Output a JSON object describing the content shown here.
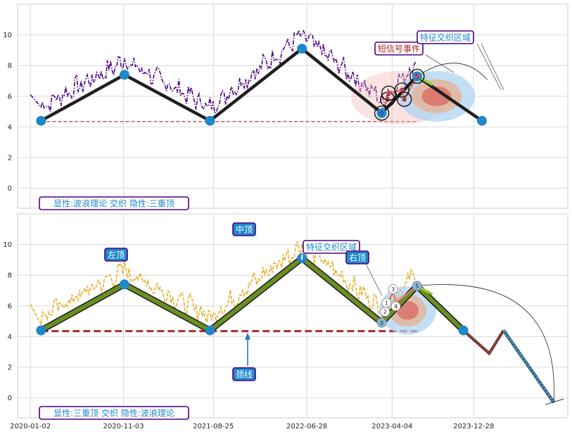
{
  "chart_data": [
    {
      "type": "line",
      "panel": "top",
      "ylim": [
        -1.3,
        12
      ],
      "yticks": [
        0,
        2,
        4,
        6,
        8,
        10
      ],
      "grid": true,
      "colors": {
        "price": "#4b0082",
        "wave": "#1f1f1f",
        "node": "#1f88c9",
        "neckline": "#b22222"
      },
      "wave_points": [
        {
          "x": "2020-02-06",
          "y": 4.4
        },
        {
          "x": "2020-11-06",
          "y": 7.4
        },
        {
          "x": "2021-08-14",
          "y": 4.4
        },
        {
          "x": "2022-06-12",
          "y": 9.1
        },
        {
          "x": "2023-03-01",
          "y": 4.9
        },
        {
          "x": "2023-06-25",
          "y": 7.3
        },
        {
          "x": "2024-01-24",
          "y": 4.4
        }
      ],
      "neckline": {
        "y": 4.35,
        "x_start": "2020-02-06",
        "x_end": "2023-06-25"
      },
      "short_signal_points": [
        {
          "x": "2023-03-01",
          "y": 4.9,
          "label": "0"
        },
        {
          "x": "2023-03-20",
          "y": 5.8,
          "label": "1"
        },
        {
          "x": "2023-03-24",
          "y": 6.2,
          "label": "2"
        },
        {
          "x": "2023-05-06",
          "y": 6.4,
          "label": "3"
        },
        {
          "x": "2023-05-14",
          "y": 5.8,
          "label": "4"
        },
        {
          "x": "2023-06-25",
          "y": 7.3,
          "label": "5"
        }
      ],
      "annotations": {
        "short_signal": "短信号事件",
        "feature_zone": "特征交织区域"
      },
      "footer_label": "显性:波浪理论 交织 隐性:三重顶"
    },
    {
      "type": "line",
      "panel": "bottom",
      "ylim": [
        -1.3,
        12
      ],
      "yticks": [
        0,
        2,
        4,
        6,
        8,
        10
      ],
      "grid": true,
      "colors": {
        "price": "#e6b030",
        "wave": "#6b8e23",
        "node": "#1f88c9",
        "neckline": "#a52a2a",
        "proj_red": "#c0392b",
        "proj_blue": "#3a9ad9"
      },
      "xticks": [
        "2020-01-02",
        "2020-11-03",
        "2021-08-25",
        "2022-06-28",
        "2023-04-04",
        "2023-12-28"
      ],
      "wave_points": [
        {
          "x": "2020-02-06",
          "y": 4.4
        },
        {
          "x": "2020-11-06",
          "y": 7.4
        },
        {
          "x": "2021-08-14",
          "y": 4.4
        },
        {
          "x": "2022-06-12",
          "y": 9.1
        },
        {
          "x": "2023-03-01",
          "y": 4.9
        },
        {
          "x": "2023-06-25",
          "y": 7.3
        },
        {
          "x": "2023-11-24",
          "y": 4.4
        }
      ],
      "neckline": {
        "y": 4.35,
        "x_start": "2020-02-06",
        "x_end": "2023-06-25"
      },
      "projection_red": [
        {
          "x": "2023-11-24",
          "y": 4.4
        },
        {
          "x": "2024-02-17",
          "y": 2.9
        },
        {
          "x": "2024-04-04",
          "y": 4.4
        }
      ],
      "projection_blue": [
        {
          "x": "2024-04-04",
          "y": 4.4
        },
        {
          "x": "2024-09-16",
          "y": -0.3
        }
      ],
      "short_signal_points": [
        {
          "x": "2023-03-01",
          "y": 4.9,
          "label": "0"
        },
        {
          "x": "2023-03-12",
          "y": 6.2,
          "label": "1"
        },
        {
          "x": "2023-03-12",
          "y": 5.8,
          "label": "2"
        },
        {
          "x": "2023-04-07",
          "y": 6.9,
          "label": "3"
        },
        {
          "x": "2023-04-16",
          "y": 6.2,
          "label": "4"
        },
        {
          "x": "2023-06-25",
          "y": 7.3,
          "label": "5"
        }
      ],
      "annotations": {
        "left_top": "左顶",
        "middle_top": "中顶",
        "right_top": "右顶",
        "feature_zone": "特征交织区域",
        "neckline": "颈线"
      },
      "footer_label": "显性:三重顶 交织 隐性:波浪理论"
    }
  ]
}
